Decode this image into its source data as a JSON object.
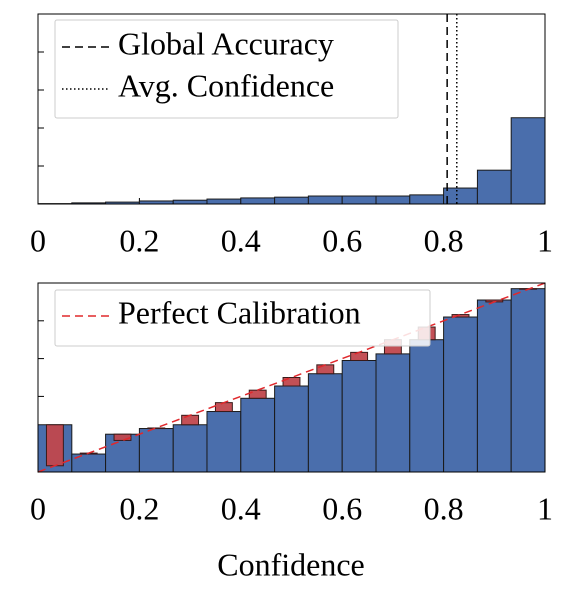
{
  "chart_data": [
    {
      "type": "histogram",
      "bins": [
        0,
        0.0667,
        0.1333,
        0.2,
        0.2667,
        0.3333,
        0.4,
        0.4667,
        0.5333,
        0.6,
        0.6667,
        0.7333,
        0.8,
        0.8667,
        0.9333,
        1
      ],
      "counts": [
        0.01,
        0.03,
        0.05,
        0.08,
        0.1,
        0.13,
        0.16,
        0.18,
        0.21,
        0.21,
        0.21,
        0.24,
        0.42,
        0.89,
        2.27
      ],
      "color": "#4a6eac",
      "xlim": [
        0,
        1
      ],
      "xticks": [
        0,
        0.2,
        0.4,
        0.6,
        0.8,
        1
      ],
      "ylim": [
        0,
        5
      ],
      "yticks": [
        1,
        2,
        3,
        4
      ],
      "lines": [
        {
          "label": "Global Accuracy",
          "value": 0.807,
          "style": "dashed",
          "color": "#000000"
        },
        {
          "label": "Avg. Confidence",
          "value": 0.826,
          "style": "dotted",
          "color": "#000000"
        }
      ]
    },
    {
      "type": "reliability",
      "bins": [
        0,
        0.0667,
        0.1333,
        0.2,
        0.2667,
        0.3333,
        0.4,
        0.4667,
        0.5333,
        0.6,
        0.6667,
        0.7333,
        0.8,
        0.8667,
        0.9333,
        1
      ],
      "accuracy": [
        0.25,
        0.095,
        0.2,
        0.23,
        0.25,
        0.32,
        0.39,
        0.455,
        0.52,
        0.59,
        0.625,
        0.7,
        0.82,
        0.91,
        0.97
      ],
      "confidence": [
        0.033,
        0.1,
        0.167,
        0.233,
        0.3,
        0.367,
        0.433,
        0.5,
        0.567,
        0.633,
        0.7,
        0.767,
        0.833,
        0.9,
        0.967
      ],
      "color": "#4a6eac",
      "gap_color": "#c0474d",
      "reference": {
        "label": "Perfect Calibration",
        "color": "#e0282c"
      },
      "xlim": [
        0,
        1
      ],
      "xticks": [
        0,
        0.2,
        0.4,
        0.6,
        0.8,
        1
      ],
      "ylim": [
        0,
        1
      ],
      "yticks": [
        0.2,
        0.4,
        0.6,
        0.8
      ],
      "xlabel": "Confidence"
    }
  ]
}
